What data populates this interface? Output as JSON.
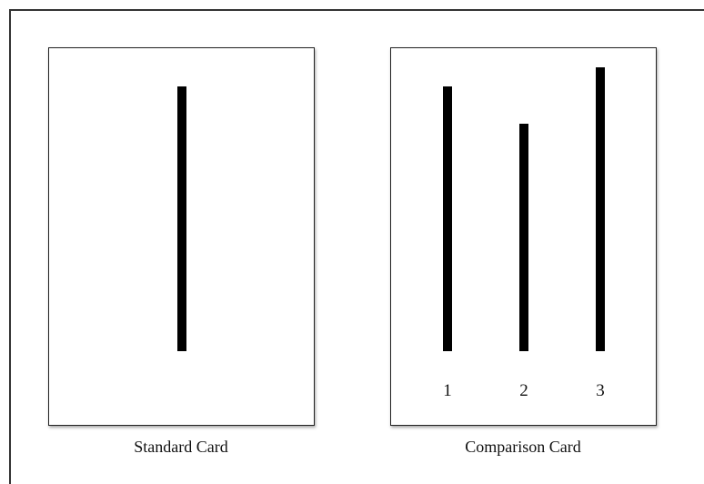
{
  "standard_card": {
    "caption": "Standard Card"
  },
  "comparison_card": {
    "caption": "Comparison Card",
    "line_labels": [
      "1",
      "2",
      "3"
    ]
  },
  "colors": {
    "line": "#000000",
    "card_border": "#222222",
    "frame_border": "#333333"
  }
}
